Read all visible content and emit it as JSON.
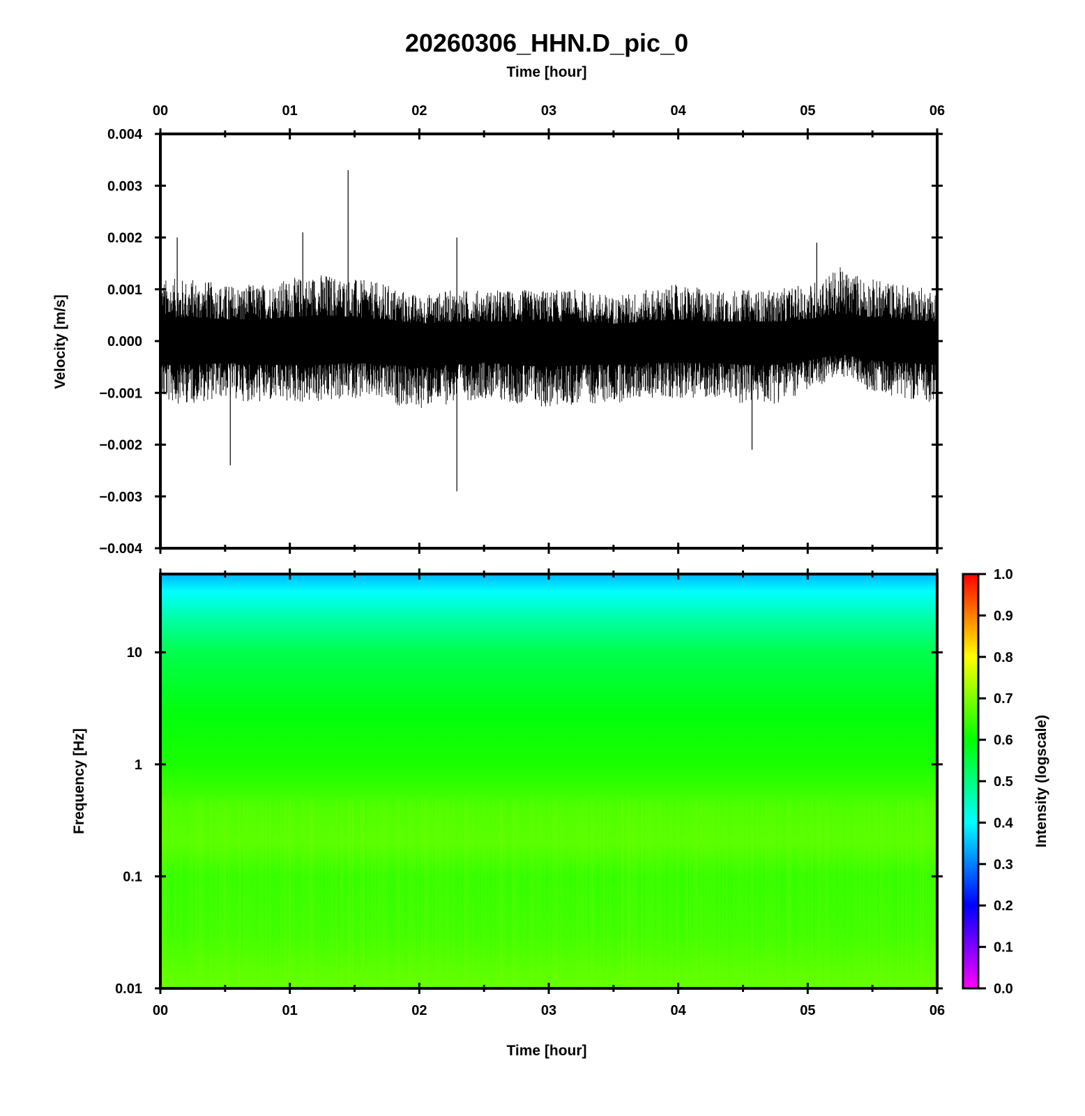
{
  "title": "20260306_HHN.D_pic_0",
  "top_xlabel": "Time [hour]",
  "bottom_xlabel": "Time [hour]",
  "chart_data": [
    {
      "type": "line",
      "panel": "waveform",
      "ylabel": "Velocity [m/s]",
      "xlabel": "Time [hour]",
      "xlim": [
        0,
        6
      ],
      "ylim": [
        -0.004,
        0.004
      ],
      "x_tick_labels": [
        "00",
        "01",
        "02",
        "03",
        "04",
        "05",
        "06"
      ],
      "y_ticks": [
        0.004,
        0.003,
        0.002,
        0.001,
        0.0,
        -0.001,
        -0.002,
        -0.003,
        -0.004
      ],
      "y_tick_labels": [
        "0.004",
        "0.003",
        "0.002",
        "0.001",
        "0.000",
        "−0.001",
        "−0.002",
        "−0.003",
        "−0.004"
      ],
      "series": [
        {
          "color": "#000000",
          "x_hours": [
            0.0,
            0.25,
            0.5,
            0.75,
            1.0,
            1.25,
            1.5,
            1.75,
            2.0,
            2.25,
            2.5,
            2.75,
            3.0,
            3.25,
            3.5,
            3.75,
            4.0,
            4.25,
            4.5,
            4.75,
            5.0,
            5.25,
            5.5,
            5.75,
            6.0
          ],
          "envelope_max": [
            0.0011,
            0.0011,
            0.001,
            0.001,
            0.0011,
            0.0012,
            0.0011,
            0.001,
            0.0008,
            0.0009,
            0.0009,
            0.0009,
            0.0009,
            0.0009,
            0.0008,
            0.0009,
            0.001,
            0.0009,
            0.0009,
            0.0009,
            0.001,
            0.0013,
            0.0011,
            0.001,
            0.0009
          ],
          "envelope_min": [
            -0.0011,
            -0.0011,
            -0.001,
            -0.0011,
            -0.0011,
            -0.0011,
            -0.001,
            -0.0011,
            -0.0012,
            -0.0011,
            -0.001,
            -0.0011,
            -0.0012,
            -0.0011,
            -0.0011,
            -0.001,
            -0.001,
            -0.001,
            -0.0011,
            -0.0011,
            -0.0009,
            -0.0006,
            -0.0009,
            -0.001,
            -0.0011
          ],
          "peaks": [
            {
              "x": 0.13,
              "y": 0.002
            },
            {
              "x": 0.54,
              "y": -0.0024
            },
            {
              "x": 1.1,
              "y": 0.0021
            },
            {
              "x": 1.45,
              "y": 0.0033
            },
            {
              "x": 2.29,
              "y": 0.002
            },
            {
              "x": 2.29,
              "y": -0.0029
            },
            {
              "x": 4.57,
              "y": -0.0021
            },
            {
              "x": 5.07,
              "y": 0.0019
            }
          ]
        }
      ]
    },
    {
      "type": "heatmap",
      "panel": "spectrogram",
      "ylabel": "Frequency [Hz]",
      "xlabel": "Time [hour]",
      "xlim": [
        0,
        6
      ],
      "ylim": [
        0.01,
        50
      ],
      "y_scale": "log",
      "x_tick_labels": [
        "00",
        "01",
        "02",
        "03",
        "04",
        "05",
        "06"
      ],
      "y_ticks": [
        10,
        1,
        0.1,
        0.01
      ],
      "y_tick_labels": [
        "10",
        "1",
        "0.1",
        "0.01"
      ],
      "intensity_profile": [
        {
          "freq": 50,
          "intensity": 0.34
        },
        {
          "freq": 35,
          "intensity": 0.4
        },
        {
          "freq": 20,
          "intensity": 0.47
        },
        {
          "freq": 10,
          "intensity": 0.54
        },
        {
          "freq": 3,
          "intensity": 0.59
        },
        {
          "freq": 1,
          "intensity": 0.62
        },
        {
          "freq": 0.4,
          "intensity": 0.66
        },
        {
          "freq": 0.2,
          "intensity": 0.67
        },
        {
          "freq": 0.1,
          "intensity": 0.64
        },
        {
          "freq": 0.03,
          "intensity": 0.65
        },
        {
          "freq": 0.01,
          "intensity": 0.68
        }
      ],
      "colorbar": {
        "label": "Intensity (logscale)",
        "range": [
          0.0,
          1.0
        ],
        "tick_labels": [
          "1.0",
          "0.9",
          "0.8",
          "0.7",
          "0.6",
          "0.5",
          "0.4",
          "0.3",
          "0.2",
          "0.1",
          "0.0"
        ],
        "colors": [
          "#ff00ff",
          "#0000ff",
          "#00ffff",
          "#00ff00",
          "#ffff00",
          "#ff0000"
        ]
      }
    }
  ]
}
